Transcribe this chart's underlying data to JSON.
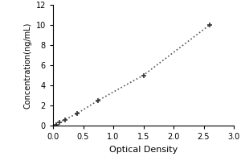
{
  "x_data": [
    0.05,
    0.1,
    0.2,
    0.4,
    0.75,
    1.5,
    2.6
  ],
  "y_data": [
    0.1,
    0.3,
    0.6,
    1.2,
    2.5,
    5.0,
    10.0
  ],
  "xlabel": "Optical Density",
  "ylabel": "Concentration(ng/mL)",
  "xlim": [
    0,
    3
  ],
  "ylim": [
    0,
    12
  ],
  "xticks": [
    0,
    0.5,
    1,
    1.5,
    2,
    2.5,
    3
  ],
  "yticks": [
    0,
    2,
    4,
    6,
    8,
    10,
    12
  ],
  "line_color": "#555555",
  "marker_color": "#333333",
  "background_color": "#ffffff",
  "line_style": "dotted",
  "marker_style": "+",
  "marker_size": 5,
  "line_width": 1.2,
  "xlabel_fontsize": 8,
  "ylabel_fontsize": 7,
  "tick_fontsize": 7
}
